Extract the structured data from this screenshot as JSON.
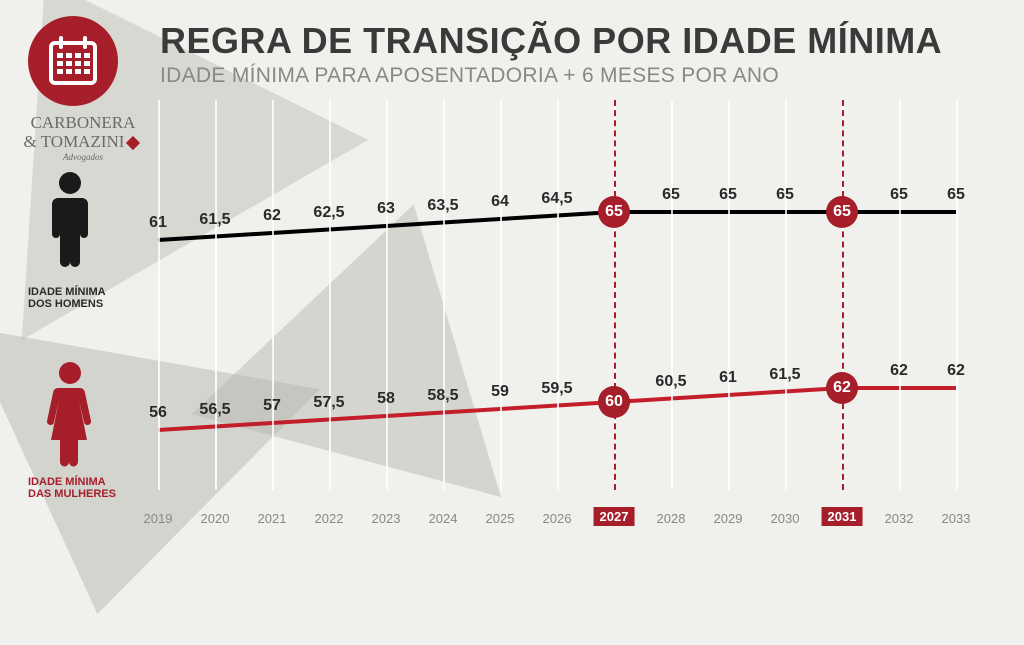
{
  "title": "REGRA DE TRANSIÇÃO POR IDADE MÍNIMA",
  "subtitle": "IDADE MÍNIMA PARA APOSENTADORIA + 6 MESES POR ANO",
  "brand": {
    "line1": "CARBONERA",
    "line2": "& TOMAZINI",
    "sub": "Advogados"
  },
  "labelMen": "IDADE MÍNIMA\nDOS HOMENS",
  "labelWomen": "IDADE MÍNIMA\nDAS MULHERES",
  "years": [
    "2019",
    "2020",
    "2021",
    "2022",
    "2023",
    "2024",
    "2025",
    "2026",
    "2027",
    "2028",
    "2029",
    "2030",
    "2031",
    "2032",
    "2033"
  ],
  "highlightYears": [
    "2027",
    "2031"
  ],
  "colors": {
    "brand": "#a51e2a",
    "menLine": "#000000",
    "womenLine": "#c41e2a",
    "grid": "#ffffff",
    "bg": "#f0f0ed",
    "text": "#3a3a3a",
    "subtext": "#888888"
  },
  "chart": {
    "type": "line",
    "xColWidth": 57,
    "yTopPad": 40,
    "menYBase": 140,
    "womenYBase": 330,
    "stepPx": 7,
    "lineWidth": 4,
    "men": {
      "values": [
        "61",
        "61,5",
        "62",
        "62,5",
        "63",
        "63,5",
        "64",
        "64,5",
        "65",
        "65",
        "65",
        "65",
        "65",
        "65",
        "65"
      ],
      "badgeIdx": [
        8,
        12
      ],
      "badgeVal": [
        "65",
        "65"
      ]
    },
    "women": {
      "values": [
        "56",
        "56,5",
        "57",
        "57,5",
        "58",
        "58,5",
        "59",
        "59,5",
        "60",
        "60,5",
        "61",
        "61,5",
        "62",
        "62",
        "62"
      ],
      "badgeIdx": [
        8,
        12
      ],
      "badgeVal": [
        "60",
        "62"
      ]
    }
  }
}
